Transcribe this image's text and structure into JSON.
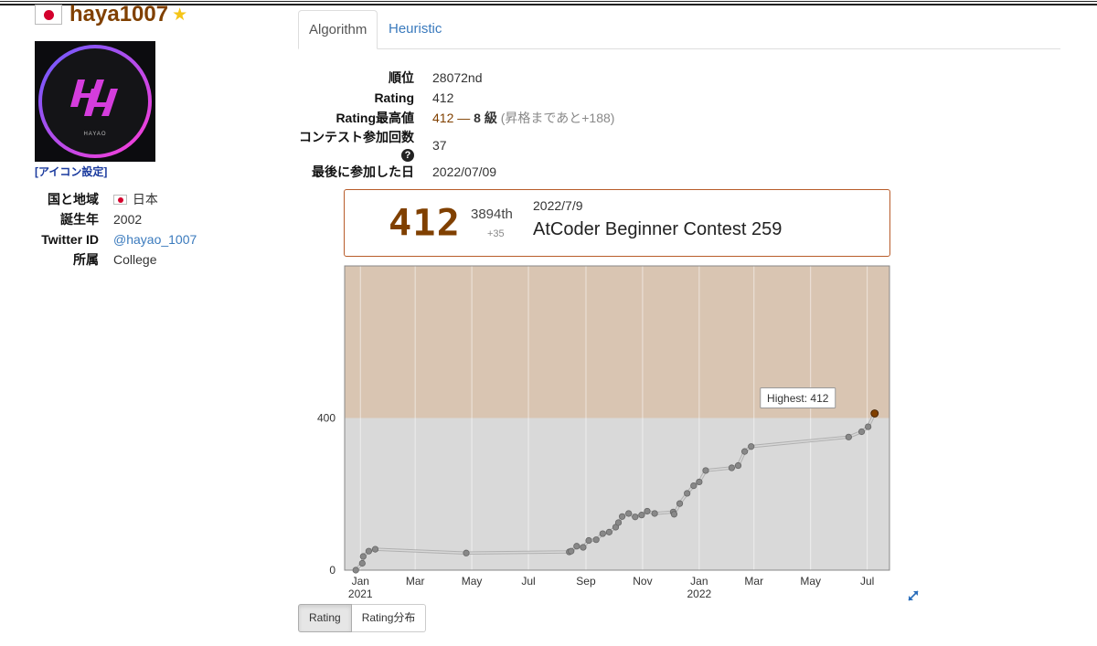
{
  "user": {
    "name": "haya1007",
    "icon_setting": "[アイコン設定]",
    "avatar_text": "HAYAO",
    "info": [
      {
        "label": "国と地域",
        "value": "日本"
      },
      {
        "label": "誕生年",
        "value": "2002"
      },
      {
        "label": "Twitter ID",
        "value": "@hayao_1007"
      },
      {
        "label": "所属",
        "value": "College"
      }
    ]
  },
  "tabs": {
    "algorithm": "Algorithm",
    "heuristic": "Heuristic"
  },
  "stats": {
    "rank_label": "順位",
    "rank": "28072nd",
    "rating_label": "Rating",
    "rating": "412",
    "highest_label": "Rating最高値",
    "highest": "412",
    "highest_sep": " — ",
    "kyu": "8 級",
    "promo": "(昇格まであと+188)",
    "count_label": "コンテスト参加回数",
    "count": "37",
    "last_label": "最後に参加した日",
    "last": "2022/07/09"
  },
  "contest": {
    "rating": "412",
    "rank": "3894th",
    "diff": "+35",
    "date": "2022/7/9",
    "name": "AtCoder Beginner Contest 259"
  },
  "chart_data": {
    "type": "line",
    "x_ticks": [
      "Jan",
      "Mar",
      "May",
      "Jul",
      "Sep",
      "Nov",
      "Jan",
      "Mar",
      "May",
      "Jul"
    ],
    "x_years": [
      "2021",
      "2022"
    ],
    "y_ticks": [
      0,
      400
    ],
    "ylim": [
      0,
      800
    ],
    "xlim": [
      "2020-12-15",
      "2022-07-25"
    ],
    "bands": [
      {
        "from": 0,
        "to": 400,
        "color": "#d9d9d9"
      },
      {
        "from": 400,
        "to": 800,
        "color": "#d9c5b2"
      }
    ],
    "tooltip": "Highest: 412",
    "series": [
      {
        "line_color": "#c0c0c0",
        "point_color": "#888888",
        "highlight_color": "#804000",
        "points": [
          {
            "x": "2020-12-27",
            "y": 0
          },
          {
            "x": "2021-01-03",
            "y": 18
          },
          {
            "x": "2021-01-04",
            "y": 36
          },
          {
            "x": "2021-01-10",
            "y": 50
          },
          {
            "x": "2021-01-17",
            "y": 55
          },
          {
            "x": "2021-04-25",
            "y": 45
          },
          {
            "x": "2021-08-14",
            "y": 48
          },
          {
            "x": "2021-08-16",
            "y": 50
          },
          {
            "x": "2021-08-22",
            "y": 63
          },
          {
            "x": "2021-08-29",
            "y": 60
          },
          {
            "x": "2021-09-04",
            "y": 78
          },
          {
            "x": "2021-09-12",
            "y": 80
          },
          {
            "x": "2021-09-19",
            "y": 96
          },
          {
            "x": "2021-09-26",
            "y": 100
          },
          {
            "x": "2021-10-03",
            "y": 113
          },
          {
            "x": "2021-10-06",
            "y": 125
          },
          {
            "x": "2021-10-10",
            "y": 141
          },
          {
            "x": "2021-10-17",
            "y": 149
          },
          {
            "x": "2021-10-24",
            "y": 140
          },
          {
            "x": "2021-10-31",
            "y": 145
          },
          {
            "x": "2021-11-06",
            "y": 155
          },
          {
            "x": "2021-11-14",
            "y": 149
          },
          {
            "x": "2021-12-04",
            "y": 153
          },
          {
            "x": "2021-12-05",
            "y": 147
          },
          {
            "x": "2021-12-11",
            "y": 175
          },
          {
            "x": "2021-12-19",
            "y": 202
          },
          {
            "x": "2021-12-26",
            "y": 222
          },
          {
            "x": "2022-01-01",
            "y": 232
          },
          {
            "x": "2022-01-08",
            "y": 262
          },
          {
            "x": "2022-02-05",
            "y": 269
          },
          {
            "x": "2022-02-12",
            "y": 275
          },
          {
            "x": "2022-02-19",
            "y": 312
          },
          {
            "x": "2022-02-26",
            "y": 325
          },
          {
            "x": "2022-06-11",
            "y": 350
          },
          {
            "x": "2022-06-25",
            "y": 364
          },
          {
            "x": "2022-07-02",
            "y": 377
          },
          {
            "x": "2022-07-09",
            "y": 412
          }
        ]
      }
    ]
  }
}
